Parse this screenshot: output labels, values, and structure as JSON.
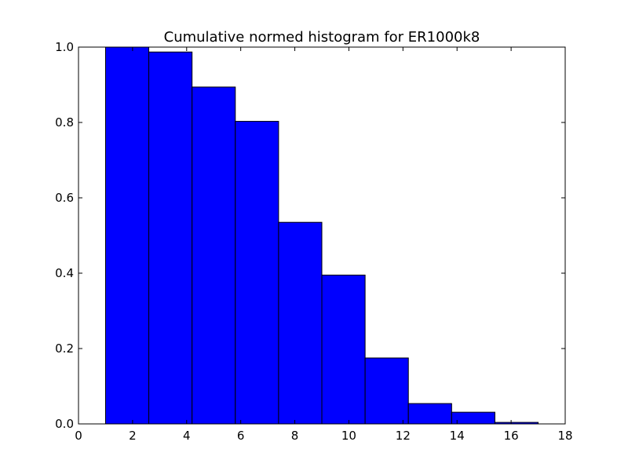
{
  "chart_data": {
    "type": "bar",
    "title": "Cumulative normed histogram for ER1000k8",
    "xlabel": "",
    "ylabel": "",
    "xlim": [
      0,
      18
    ],
    "ylim": [
      0,
      1.0
    ],
    "x_ticks": [
      "0",
      "2",
      "4",
      "6",
      "8",
      "10",
      "12",
      "14",
      "16",
      "18"
    ],
    "y_ticks": [
      "0.0",
      "0.2",
      "0.4",
      "0.6",
      "0.8",
      "1.0"
    ],
    "bins": [
      {
        "start": 1.0,
        "end": 2.6,
        "value": 1.0
      },
      {
        "start": 2.6,
        "end": 4.2,
        "value": 0.987
      },
      {
        "start": 4.2,
        "end": 5.8,
        "value": 0.894
      },
      {
        "start": 5.8,
        "end": 7.4,
        "value": 0.803
      },
      {
        "start": 7.4,
        "end": 9.0,
        "value": 0.535
      },
      {
        "start": 9.0,
        "end": 10.6,
        "value": 0.395
      },
      {
        "start": 10.6,
        "end": 12.2,
        "value": 0.175
      },
      {
        "start": 12.2,
        "end": 13.8,
        "value": 0.054
      },
      {
        "start": 13.8,
        "end": 15.4,
        "value": 0.031
      },
      {
        "start": 15.4,
        "end": 17.0,
        "value": 0.004
      }
    ],
    "bar_color": "#0000ff",
    "edge_color": "#000000",
    "grid": false,
    "legend": "none"
  }
}
